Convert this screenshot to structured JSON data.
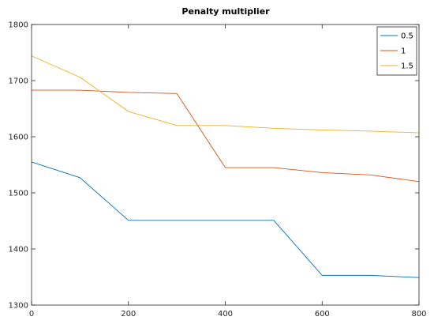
{
  "chart_data": {
    "type": "line",
    "title": "Penalty multiplier",
    "xlabel": "",
    "ylabel": "",
    "xlim": [
      0,
      800
    ],
    "ylim": [
      1300,
      1800
    ],
    "xticks": [
      0,
      200,
      400,
      600,
      800
    ],
    "yticks": [
      1300,
      1400,
      1500,
      1600,
      1700,
      1800
    ],
    "grid": false,
    "legend_position": "top-right",
    "series": [
      {
        "name": "0.5",
        "color": "#0072BD",
        "x": [
          0,
          100,
          200,
          300,
          400,
          500,
          600,
          700,
          800
        ],
        "y": [
          1555,
          1527,
          1451,
          1451,
          1451,
          1451,
          1353,
          1353,
          1349
        ]
      },
      {
        "name": "1",
        "color": "#D95319",
        "x": [
          0,
          100,
          200,
          300,
          400,
          500,
          600,
          700,
          800
        ],
        "y": [
          1683,
          1683,
          1679,
          1677,
          1545,
          1545,
          1536,
          1532,
          1520
        ]
      },
      {
        "name": "1.5",
        "color": "#EDB120",
        "x": [
          0,
          100,
          200,
          300,
          400,
          500,
          600,
          700,
          800
        ],
        "y": [
          1744,
          1706,
          1645,
          1620,
          1620,
          1615,
          1612,
          1610,
          1607
        ]
      }
    ]
  }
}
